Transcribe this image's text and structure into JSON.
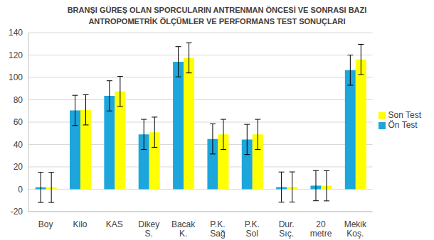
{
  "chart_data": {
    "type": "bar",
    "title": "BRANŞI GÜREŞ OLAN SPORCULARIN ANTRENMAN ÖNCESİ VE SONRASI BAZI\nANTROPOMETRİK ÖLÇÜMLER VE PERFORMANS TEST SONUÇLARI",
    "categories": [
      "Boy",
      "Kilo",
      "KAS",
      "Dikey S.",
      "Bacak K.",
      "P.K. Sağ",
      "P.K. Sol",
      "Dur. Sıç.",
      "20 metre",
      "Mekik Koş."
    ],
    "series": [
      {
        "name": "Ön Test",
        "color": "#1ca6dc",
        "values": [
          1.7,
          70.5,
          83.5,
          49,
          114,
          45,
          44.5,
          1.9,
          3.2,
          106.5
        ],
        "errors": [
          13.5,
          13.5,
          13.5,
          13.5,
          13.5,
          13.5,
          13.5,
          13.5,
          13.5,
          13.5
        ]
      },
      {
        "name": "Son Test",
        "color": "#ffff00",
        "values": [
          1.7,
          71,
          87.5,
          51,
          117.5,
          49,
          49,
          2,
          3.1,
          116
        ],
        "errors": [
          13.5,
          13.5,
          13.5,
          13.5,
          13.5,
          13.5,
          13.5,
          13.5,
          13.5,
          13.5
        ]
      }
    ],
    "ylim": [
      -20,
      140
    ],
    "yticks": [
      -20,
      0,
      20,
      40,
      60,
      80,
      100,
      120,
      140
    ],
    "grid": true,
    "legend": "right"
  }
}
